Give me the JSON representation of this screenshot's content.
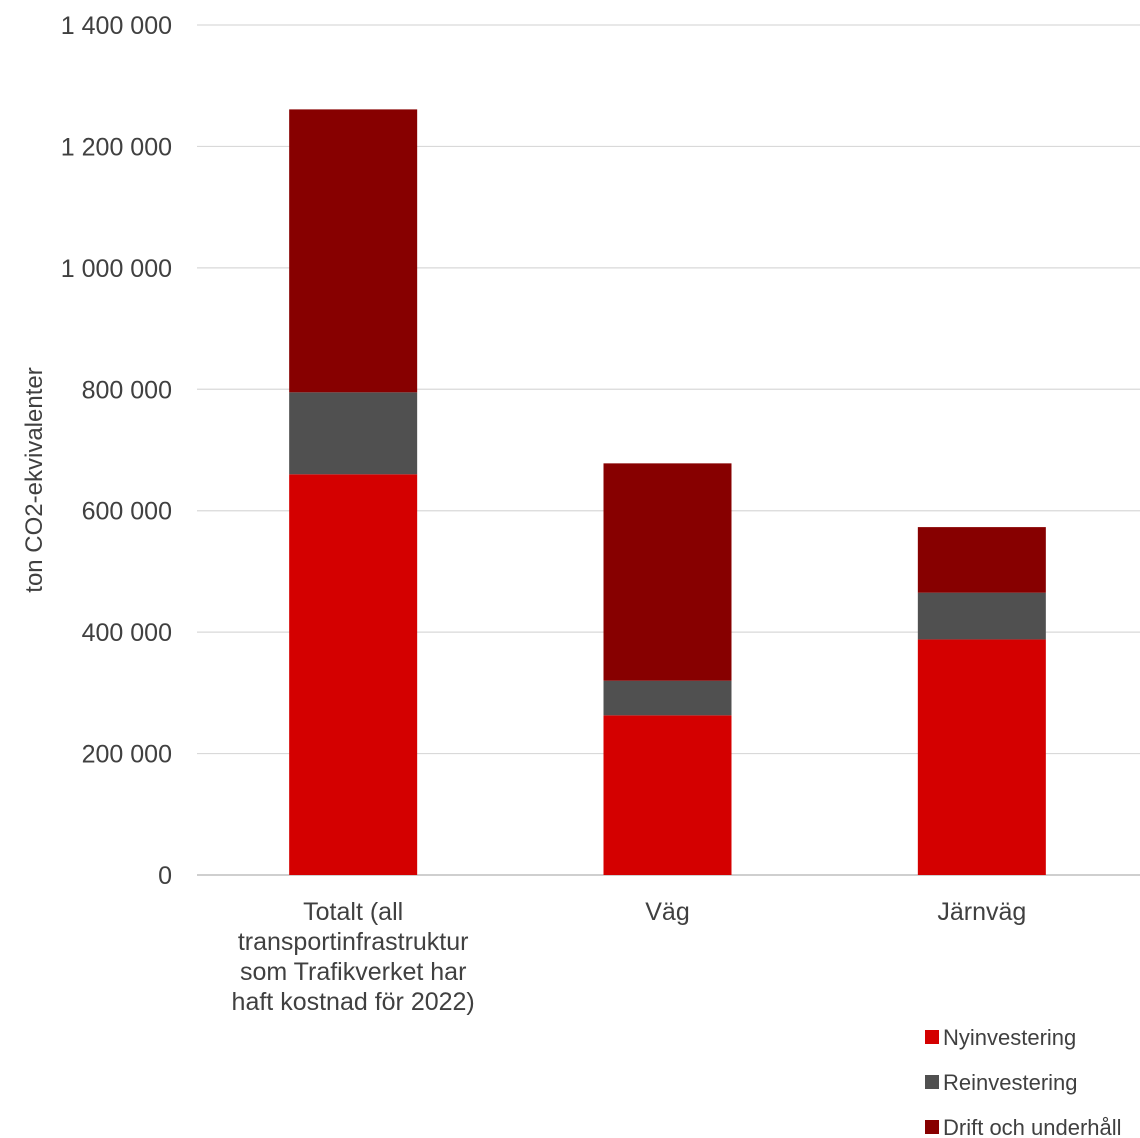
{
  "chart_data": {
    "type": "bar",
    "stacked": true,
    "title": "",
    "xlabel": "",
    "ylabel": "ton CO2-ekvivalenter",
    "ylim": [
      0,
      1400000
    ],
    "yticks": [
      0,
      200000,
      400000,
      600000,
      800000,
      1000000,
      1200000,
      1400000
    ],
    "ytick_labels": [
      "0",
      "200 000",
      "400 000",
      "600 000",
      "800 000",
      "1 000 000",
      "1 200 000",
      "1 400 000"
    ],
    "grid": "horizontal",
    "legend_position": "bottom-right",
    "categories": [
      [
        "Totalt (all",
        "transportinfrastruktur",
        "som Trafikverket har",
        "haft kostnad för 2022)"
      ],
      [
        "Väg"
      ],
      [
        "Järnväg"
      ]
    ],
    "series": [
      {
        "name": "Nyinvestering",
        "color": "#d40000",
        "values": [
          660000,
          263000,
          388000
        ]
      },
      {
        "name": "Reinvestering",
        "color": "#505050",
        "values": [
          135000,
          57000,
          77000
        ]
      },
      {
        "name": "Drift och underhåll",
        "color": "#870000",
        "values": [
          466000,
          358000,
          108000
        ]
      }
    ]
  }
}
